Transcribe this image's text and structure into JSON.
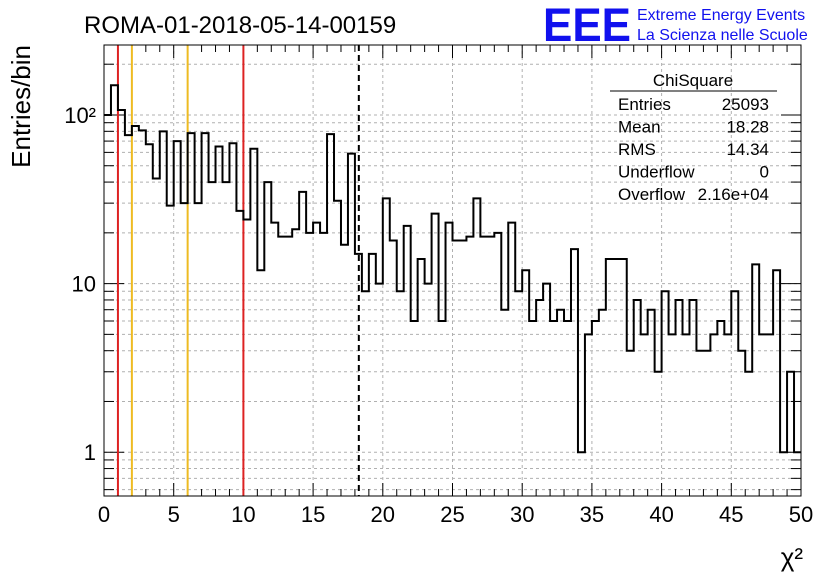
{
  "header": {
    "run_title": "ROMA-01-2018-05-14-00159",
    "logo_text": "EEE",
    "logo_line1": "Extreme Energy Events",
    "logo_line2": "La Scienza nelle Scuole"
  },
  "stats": {
    "title": "ChiSquare",
    "rows": [
      {
        "label": "Entries",
        "value": "25093"
      },
      {
        "label": "Mean",
        "value": "18.28"
      },
      {
        "label": "RMS",
        "value": "14.34"
      },
      {
        "label": "Underflow",
        "value": "0"
      },
      {
        "label": "Overflow",
        "value": "2.16e+04"
      }
    ]
  },
  "colors": {
    "red_line": "#dd2222",
    "yellow_line": "#eebb22",
    "logo_blue": "#1111ee",
    "grid": "#b0b0b0"
  },
  "chart_data": {
    "type": "histogram",
    "xlabel": "χ²",
    "ylabel": "Entries/bin",
    "xlim": [
      0,
      50
    ],
    "ylim": [
      0.55,
      260
    ],
    "log_y": true,
    "grid": true,
    "x_ticks": [
      "0",
      "5",
      "10",
      "15",
      "20",
      "25",
      "30",
      "35",
      "40",
      "45",
      "50"
    ],
    "y_ticks": [
      {
        "value": 1,
        "label": "1"
      },
      {
        "value": 10,
        "label": "10"
      },
      {
        "value": 100,
        "label": "10²"
      }
    ],
    "bin_width": 0.5,
    "values": [
      100,
      150,
      107,
      76,
      86,
      81,
      67,
      42,
      80,
      29,
      70,
      30,
      78,
      30,
      78,
      40,
      65,
      40,
      68,
      27,
      24,
      63,
      12,
      40,
      23,
      19,
      19,
      21,
      35,
      20,
      23,
      20,
      77,
      31,
      17,
      59,
      15,
      9,
      15,
      10,
      32,
      18,
      9,
      22,
      6,
      14,
      10,
      26,
      6,
      23,
      18,
      18,
      19,
      32,
      19,
      19,
      20,
      7,
      23,
      9,
      12,
      6,
      8,
      10,
      6,
      7,
      6,
      16,
      1,
      5,
      6,
      7,
      14,
      14,
      14,
      4,
      8,
      5,
      7,
      3,
      9,
      5,
      8,
      5,
      8,
      4,
      4,
      5,
      6,
      5,
      9,
      4,
      3,
      13,
      5,
      5,
      12,
      1,
      3,
      1
    ],
    "vertical_lines": [
      {
        "x": 1,
        "color": "red",
        "style": "solid"
      },
      {
        "x": 2,
        "color": "yellow",
        "style": "solid"
      },
      {
        "x": 6,
        "color": "yellow",
        "style": "solid"
      },
      {
        "x": 10,
        "color": "red",
        "style": "solid"
      },
      {
        "x": 18.28,
        "color": "black",
        "style": "dashed"
      }
    ]
  }
}
